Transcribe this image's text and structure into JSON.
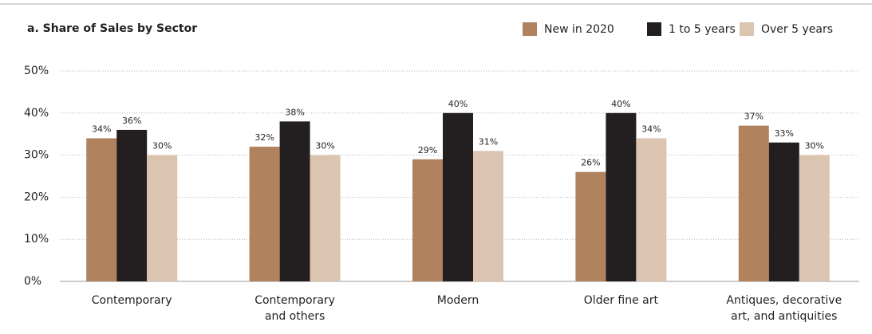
{
  "chart_data": {
    "type": "bar",
    "title": "a. Share of Sales by Sector",
    "categories": [
      "Contemporary",
      "Contemporary\nand others",
      "Modern",
      "Older fine art",
      "Antiques, decorative\nart, and antiquities"
    ],
    "series": [
      {
        "name": "New in 2020",
        "color": "#b0825e",
        "values": [
          34,
          32,
          29,
          26,
          37
        ],
        "value_labels": [
          "34%",
          "32%",
          "29%",
          "26%",
          "37%"
        ]
      },
      {
        "name": "1 to 5 years",
        "color": "#231f20",
        "values": [
          36,
          38,
          40,
          40,
          33
        ],
        "value_labels": [
          "36%",
          "38%",
          "40%",
          "40%",
          "33%"
        ]
      },
      {
        "name": "Over 5 years",
        "color": "#dcc5b0",
        "values": [
          30,
          30,
          31,
          34,
          30
        ],
        "value_labels": [
          "30%",
          "30%",
          "31%",
          "34%",
          "30%"
        ]
      }
    ],
    "ylim": [
      0,
      50
    ],
    "yticks": [
      {
        "value": 0,
        "label": "0%"
      },
      {
        "value": 10,
        "label": "10%"
      },
      {
        "value": 20,
        "label": "20%"
      },
      {
        "value": 30,
        "label": "30%"
      },
      {
        "value": 40,
        "label": "40%"
      },
      {
        "value": 50,
        "label": "50%"
      }
    ],
    "grid": true,
    "legend": "top-right"
  }
}
